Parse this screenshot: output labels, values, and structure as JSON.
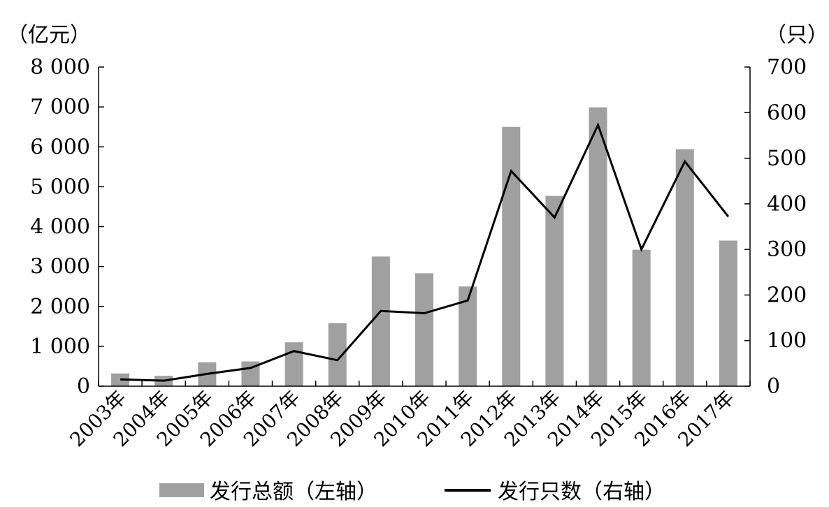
{
  "chart_data": {
    "type": "bar",
    "categories": [
      "2003年",
      "2004年",
      "2005年",
      "2006年",
      "2007年",
      "2008年",
      "2009年",
      "2010年",
      "2011年",
      "2012年",
      "2013年",
      "2014年",
      "2015年",
      "2016年",
      "2017年"
    ],
    "series": [
      {
        "name": "发行总额（左轴）",
        "type": "bar",
        "axis": "left",
        "values": [
          320,
          260,
          600,
          620,
          1100,
          1580,
          3250,
          2830,
          2500,
          6500,
          4770,
          6990,
          3420,
          5940,
          3650
        ]
      },
      {
        "name": "发行只数（右轴）",
        "type": "line",
        "axis": "right",
        "values": [
          15,
          12,
          27,
          40,
          77,
          57,
          165,
          160,
          188,
          472,
          370,
          573,
          300,
          493,
          372
        ]
      }
    ],
    "ylabel_left": "（亿元）",
    "ylabel_right": "（只）",
    "ylim_left": [
      0,
      8000
    ],
    "ylim_right": [
      0,
      700
    ],
    "yticks_left": [
      "0",
      "1 000",
      "2 000",
      "3 000",
      "4 000",
      "5 000",
      "6 000",
      "7 000",
      "8 000"
    ],
    "yticks_right": [
      "0",
      "100",
      "200",
      "300",
      "400",
      "500",
      "600",
      "700"
    ],
    "grid": false,
    "legend_position": "bottom",
    "colors": {
      "bar": "#a0a0a0",
      "line": "#000000",
      "axis": "#000000"
    }
  }
}
